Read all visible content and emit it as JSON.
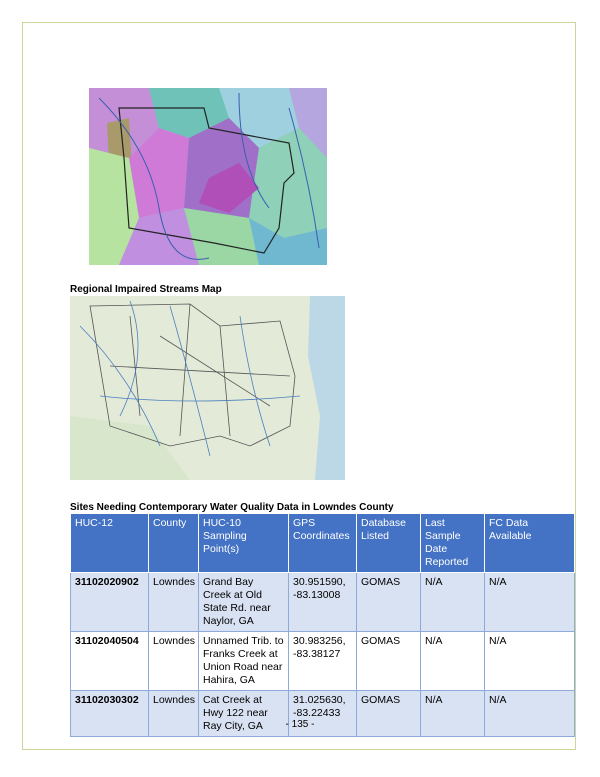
{
  "captions": {
    "map": "Regional Impaired Streams Map",
    "table": "Sites Needing Contemporary Water Quality Data in Lowndes County"
  },
  "table": {
    "header": [
      "HUC-12",
      "County",
      "HUC-10 Sampling Point(s)",
      "GPS Coordinates",
      "Database Listed",
      "Last Sample Date Reported",
      "FC Data Available"
    ],
    "rows": [
      [
        "31102020902",
        "Lowndes",
        "Grand Bay Creek at Old State Rd. near Naylor, GA",
        "30.951590, -83.13008",
        "GOMAS",
        "N/A",
        "N/A"
      ],
      [
        "31102040504",
        "Lowndes",
        "Unnamed Trib. to Franks Creek at Union Road near Hahira, GA",
        "30.983256, -83.38127",
        "GOMAS",
        "N/A",
        "N/A"
      ],
      [
        "31102030302",
        "Lowndes",
        "Cat Creek at Hwy 122 near Ray City, GA",
        "31.025630, -83.22433",
        "GOMAS",
        "N/A",
        "N/A"
      ]
    ]
  },
  "footer": {
    "page_number": "- 135 -"
  }
}
